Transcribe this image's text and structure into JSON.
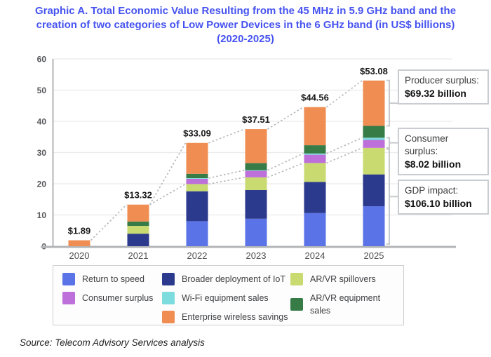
{
  "title": {
    "lines": [
      "Graphic A. Total Economic Value Resulting from the 45 MHz in 5.9 GHz band and the",
      "creation of two categories of Low Power Devices in the 6 GHz band (in US$ billions)",
      "(2020-2025)"
    ],
    "color": "#4653F0"
  },
  "chart_data": {
    "type": "bar",
    "stacked": true,
    "categories": [
      "2020",
      "2021",
      "2022",
      "2023",
      "2024",
      "2025"
    ],
    "totals": [
      1.89,
      13.32,
      33.09,
      37.51,
      44.56,
      53.08
    ],
    "totals_labels": [
      "$1.89",
      "$13.32",
      "$33.09",
      "$37.51",
      "$44.56",
      "$53.08"
    ],
    "series": [
      {
        "name": "Return to speed",
        "color": "#5A74E8",
        "values": [
          0,
          0,
          8.0,
          8.8,
          10.6,
          12.8
        ]
      },
      {
        "name": "Broader deployment of IoT",
        "color": "#2B3A8D",
        "values": [
          0,
          4.0,
          9.6,
          9.2,
          10.0,
          10.2
        ]
      },
      {
        "name": "AR/VR spillovers",
        "color": "#C9DB70",
        "values": [
          0,
          2.5,
          2.3,
          4.05,
          6.05,
          8.5
        ]
      },
      {
        "name": "Consumer surplus",
        "color": "#BD70DA",
        "values": [
          0,
          0,
          1.7,
          2.1,
          2.65,
          2.55
        ]
      },
      {
        "name": "Wi-Fi equipment sales",
        "color": "#7CDCDE",
        "values": [
          0,
          0,
          0.2,
          0.2,
          0.4,
          0.7
        ]
      },
      {
        "name": "AR/VR equipment sales",
        "color": "#377B47",
        "values": [
          0,
          1.4,
          1.4,
          2.26,
          2.64,
          3.8
        ]
      },
      {
        "name": "Enterprise wireless savings",
        "color": "#F08D52",
        "values": [
          1.89,
          5.42,
          9.89,
          10.9,
          12.22,
          14.53
        ]
      }
    ],
    "xlabel": "",
    "ylabel": "",
    "ylim": [
      0,
      60
    ],
    "yticks": [
      0,
      10,
      20,
      30,
      40,
      50,
      60
    ],
    "grid": true,
    "legend_position": "bottom"
  },
  "annotations": [
    {
      "label": "Producer surplus:",
      "value": "$69.32 billion"
    },
    {
      "label": "Consumer surplus:",
      "value": "$8.02 billion"
    },
    {
      "label": "GDP impact:",
      "value": "$106.10 billion"
    }
  ],
  "legend": {
    "columns": [
      [
        {
          "label": "Return to speed",
          "color": "#5A74E8"
        },
        {
          "label": "Consumer surplus",
          "color": "#BD70DA"
        }
      ],
      [
        {
          "label": "Broader deployment of IoT",
          "color": "#2B3A8D"
        },
        {
          "label": "Wi-Fi equipment sales",
          "color": "#7CDCDE"
        },
        {
          "label": "Enterprise wireless savings",
          "color": "#F08D52"
        }
      ],
      [
        {
          "label": "AR/VR spillovers",
          "color": "#C9DB70"
        },
        {
          "label": "AR/VR equipment sales",
          "color": "#377B47"
        }
      ]
    ]
  },
  "source": "Source: Telecom Advisory Services analysis"
}
